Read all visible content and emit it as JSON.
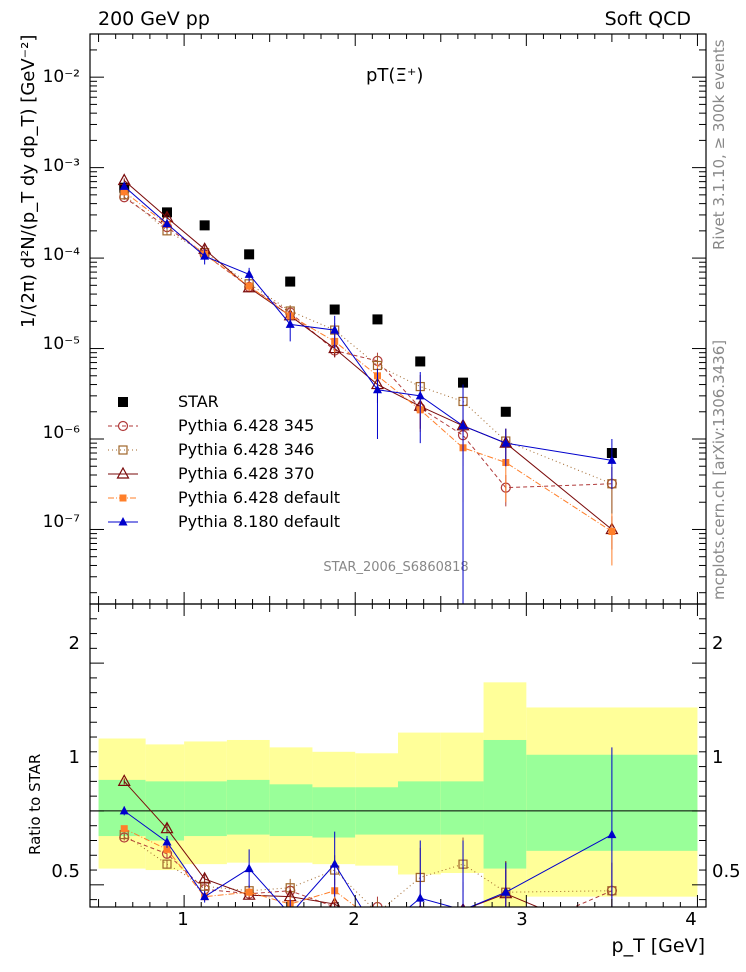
{
  "header": {
    "left": "200 GeV pp",
    "right": "Soft QCD",
    "plot_title": "pT(Ξ⁺)",
    "rivet_note": "Rivet 3.1.10, ≥ 300k events",
    "mcplots_note": "mcplots.cern.ch [arXiv:1306.3436]",
    "analysis_id": "STAR_2006_S6860818"
  },
  "axes": {
    "xlabel": "p_T [GeV]",
    "ylabel_main": "1/(2π) d²N/(p_T dy dp_T) [GeV⁻²]",
    "ylabel_ratio": "Ratio to STAR",
    "x_ticks": [
      "1",
      "2",
      "3",
      "4"
    ],
    "y_ticks_main": [
      "10⁻⁷",
      "10⁻⁶",
      "10⁻⁵",
      "10⁻⁴",
      "10⁻³",
      "10⁻²"
    ],
    "y_ticks_ratio": [
      "0.5",
      "1",
      "2"
    ]
  },
  "colors": {
    "star": "#000000",
    "p345": "#b03a3a",
    "p346": "#a0662a",
    "p370": "#7a0a0a",
    "pdef": "#ff7f2a",
    "p8": "#0000cc",
    "band_yellow": "#ffff99",
    "band_green": "#99ff99"
  },
  "chart_data": {
    "type": "scatter",
    "log_y": true,
    "xlim": [
      0.45,
      4.05
    ],
    "ylim": [
      1.5e-08,
      0.03
    ],
    "ratio_ylim": [
      0.35,
      2.4
    ],
    "x": [
      0.65,
      0.9,
      1.12,
      1.38,
      1.62,
      1.88,
      2.13,
      2.38,
      2.63,
      2.88,
      3.5
    ],
    "bin_edges": [
      0.5,
      0.775,
      1.0,
      1.25,
      1.5,
      1.75,
      2.0,
      2.25,
      2.5,
      2.75,
      3.0,
      4.0
    ],
    "ratio_band_green": [
      [
        0.83,
        1.21
      ],
      [
        0.8,
        1.2
      ],
      [
        0.83,
        1.2
      ],
      [
        0.84,
        1.21
      ],
      [
        0.83,
        1.18
      ],
      [
        0.82,
        1.16
      ],
      [
        0.84,
        1.16
      ],
      [
        0.84,
        1.2
      ],
      [
        0.84,
        1.2
      ],
      [
        0.61,
        1.48
      ],
      [
        0.73,
        1.38
      ]
    ],
    "ratio_band_yellow": [
      [
        0.61,
        1.49
      ],
      [
        0.6,
        1.45
      ],
      [
        0.64,
        1.47
      ],
      [
        0.65,
        1.48
      ],
      [
        0.65,
        1.43
      ],
      [
        0.64,
        1.4
      ],
      [
        0.63,
        1.39
      ],
      [
        0.57,
        1.53
      ],
      [
        0.58,
        1.53
      ],
      [
        0.3,
        1.87
      ],
      [
        0.42,
        1.7
      ]
    ],
    "series": [
      {
        "name": "STAR",
        "marker": "square-filled",
        "y": [
          0.0006,
          0.00032,
          0.00023,
          0.00011,
          5.5e-05,
          2.7e-05,
          2.1e-05,
          7.2e-06,
          4.2e-06,
          2e-06,
          7e-07
        ]
      },
      {
        "name": "Pythia 6.428 345",
        "marker": "circle-open",
        "dash": "4,3",
        "y": [
          0.00047,
          0.00022,
          0.00011,
          4.8e-05,
          2.5e-05,
          9.5e-06,
          7.3e-06,
          2.2e-06,
          1.1e-06,
          2.9e-07,
          3.2e-07
        ],
        "yerr": [
          [
            0.00044,
            0.0005
          ],
          [
            0.00019,
            0.00025
          ],
          [
            9.5e-05,
            0.000125
          ],
          [
            4.2e-05,
            5.4e-05
          ],
          [
            2e-05,
            3e-05
          ],
          [
            8e-06,
            1.1e-05
          ],
          [
            5.5e-06,
            9e-06
          ],
          [
            1.3e-06,
            3.1e-06
          ],
          [
            5e-07,
            1.7e-06
          ],
          [
            1.8e-07,
            4e-07
          ],
          [
            1.5e-07,
            4.9e-07
          ]
        ],
        "ratio": [
          0.82,
          0.71,
          0.47,
          0.44,
          0.46,
          0.35,
          0.35,
          0.31,
          0.27,
          0.15,
          0.46
        ],
        "ratio_err": [
          [
            0.8,
            0.85
          ],
          [
            0.68,
            0.74
          ],
          [
            0.44,
            0.5
          ],
          [
            0.41,
            0.47
          ],
          [
            0.4,
            0.5
          ],
          [
            0.3,
            0.4
          ],
          [
            0.28,
            0.42
          ],
          [
            0.2,
            0.4
          ],
          [
            0.15,
            0.4
          ],
          [
            0.1,
            0.22
          ],
          [
            0.25,
            0.65
          ]
        ]
      },
      {
        "name": "Pythia 6.428 346",
        "marker": "square-open",
        "dash": "1,3",
        "y": [
          0.0005,
          0.0002,
          0.000115,
          5.2e-05,
          2.6e-05,
          1.6e-05,
          6.5e-06,
          3.8e-06,
          2.6e-06,
          9.5e-07,
          3.2e-07
        ],
        "yerr": [
          [
            0.00046,
            0.00054
          ],
          [
            0.00018,
            0.00022
          ],
          [
            0.0001,
            0.00013
          ],
          [
            4.6e-05,
            5.8e-05
          ],
          [
            2.2e-05,
            3e-05
          ],
          [
            1.3e-05,
            1.9e-05
          ],
          [
            4.5e-06,
            8.5e-06
          ],
          [
            2.5e-06,
            5.1e-06
          ],
          [
            1.4e-06,
            3.8e-06
          ],
          [
            6e-07,
            1.3e-06
          ],
          [
            1.5e-07,
            4.9e-07
          ]
        ],
        "ratio": [
          0.84,
          0.64,
          0.49,
          0.46,
          0.48,
          0.6,
          0.31,
          0.55,
          0.64,
          0.45,
          0.46
        ],
        "ratio_err": [
          [
            0.82,
            0.87
          ],
          [
            0.61,
            0.67
          ],
          [
            0.45,
            0.52
          ],
          [
            0.43,
            0.5
          ],
          [
            0.42,
            0.54
          ],
          [
            0.5,
            0.7
          ],
          [
            0.22,
            0.4
          ],
          [
            0.35,
            0.75
          ],
          [
            0.45,
            0.82
          ],
          [
            0.3,
            0.6
          ],
          [
            0.25,
            0.65
          ]
        ]
      },
      {
        "name": "Pythia 6.428 370",
        "marker": "triangle-open",
        "dash": "",
        "y": [
          0.00072,
          0.00028,
          0.000125,
          4.7e-05,
          2.3e-05,
          1e-05,
          4e-06,
          2.3e-06,
          1.4e-06,
          9e-07,
          1e-07
        ],
        "yerr": [
          [
            0.00068,
            0.00076
          ],
          [
            0.00025,
            0.00031
          ],
          [
            0.00011,
            0.00014
          ],
          [
            4.2e-05,
            5.2e-05
          ],
          [
            1.9e-05,
            2.7e-05
          ],
          [
            8e-06,
            1.2e-05
          ],
          [
            2.5e-06,
            5.5e-06
          ],
          [
            1.3e-06,
            3.3e-06
          ],
          [
            6e-07,
            2.2e-06
          ],
          [
            5e-07,
            1.3e-06
          ],
          [
            6e-08,
            1.4e-07
          ]
        ],
        "ratio": [
          1.2,
          0.88,
          0.54,
          0.43,
          0.42,
          0.37,
          0.19,
          0.32,
          0.33,
          0.44,
          0.14
        ],
        "ratio_err": [
          [
            1.18,
            1.22
          ],
          [
            0.85,
            0.91
          ],
          [
            0.51,
            0.57
          ],
          [
            0.4,
            0.46
          ],
          [
            0.37,
            0.47
          ],
          [
            0.32,
            0.42
          ],
          [
            0.12,
            0.26
          ],
          [
            0.2,
            0.44
          ],
          [
            0.15,
            0.52
          ],
          [
            0.25,
            0.66
          ],
          [
            0.08,
            0.2
          ]
        ]
      },
      {
        "name": "Pythia 6.428 default",
        "marker": "square-filled-small",
        "dash": "6,2,1,2",
        "y": [
          0.00054,
          0.000235,
          0.00011,
          4.9e-05,
          2.3e-05,
          1.2e-05,
          5e-06,
          2.1e-06,
          8e-07,
          5.5e-07,
          9.5e-08
        ],
        "yerr": [
          [
            0.0005,
            0.00058
          ],
          [
            0.00021,
            0.00026
          ],
          [
            9.6e-05,
            0.000125
          ],
          [
            4.3e-05,
            5.5e-05
          ],
          [
            1.9e-05,
            2.7e-05
          ],
          [
            9e-06,
            1.5e-05
          ],
          [
            3.2e-06,
            6.8e-06
          ],
          [
            1.2e-06,
            3e-06
          ],
          [
            2e-07,
            1.4e-06
          ],
          [
            2e-07,
            9e-07
          ],
          [
            4e-08,
            1.5e-07
          ]
        ],
        "ratio": [
          0.88,
          0.74,
          0.42,
          0.45,
          0.37,
          0.46,
          0.24,
          0.26,
          0.19,
          0.27,
          0.13
        ],
        "ratio_err": [
          [
            0.86,
            0.9
          ],
          [
            0.71,
            0.77
          ],
          [
            0.39,
            0.45
          ],
          [
            0.42,
            0.48
          ],
          [
            0.32,
            0.42
          ],
          [
            0.38,
            0.54
          ],
          [
            0.16,
            0.32
          ],
          [
            0.15,
            0.37
          ],
          [
            0.05,
            0.33
          ],
          [
            0.1,
            0.44
          ],
          [
            0.05,
            0.21
          ]
        ]
      },
      {
        "name": "Pythia 8.180 default",
        "marker": "triangle-filled",
        "dash": "",
        "y": [
          0.00062,
          0.00024,
          0.000105,
          6.6e-05,
          1.85e-05,
          1.6e-05,
          3.5e-06,
          3e-06,
          1.4e-06,
          9e-07,
          5.8e-07
        ],
        "yerr": [
          [
            0.00058,
            0.00066
          ],
          [
            0.00021,
            0.00027
          ],
          [
            8.5e-05,
            0.000125
          ],
          [
            5.6e-05,
            7.8e-05
          ],
          [
            1.2e-05,
            2.5e-05
          ],
          [
            1e-05,
            2.3e-05
          ],
          [
            1e-06,
            6e-06
          ],
          [
            9e-07,
            5.5e-06
          ],
          [
            1e-09,
            4e-06
          ],
          [
            5e-07,
            1.3e-06
          ],
          [
            2.8e-07,
            1e-06
          ]
        ],
        "ratio": [
          1.0,
          0.79,
          0.42,
          0.61,
          0.3,
          0.64,
          0.17,
          0.41,
          0.33,
          0.45,
          0.84
        ],
        "ratio_err": [
          [
            0.97,
            1.03
          ],
          [
            0.75,
            0.83
          ],
          [
            0.38,
            0.46
          ],
          [
            0.48,
            0.74
          ],
          [
            0.2,
            0.4
          ],
          [
            0.42,
            0.86
          ],
          [
            0.05,
            0.29
          ],
          [
            0.15,
            0.8
          ],
          [
            0.01,
            0.8
          ],
          [
            0.25,
            0.65
          ],
          [
            0.25,
            1.43
          ]
        ]
      }
    ]
  }
}
